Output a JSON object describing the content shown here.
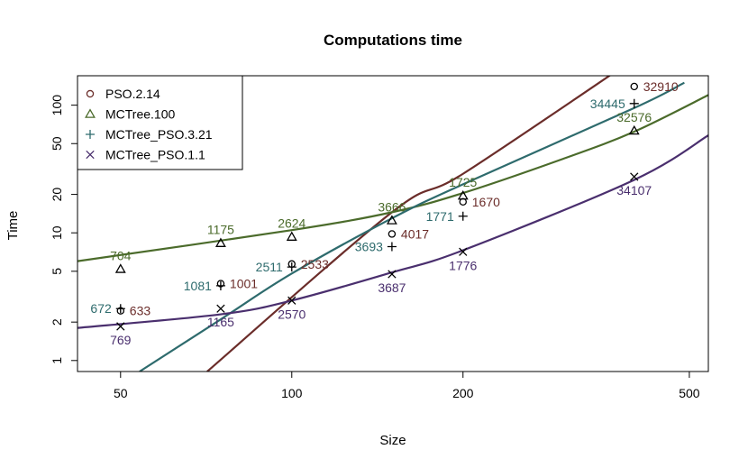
{
  "chart_data": {
    "type": "scatter",
    "title": "Computations time",
    "xlabel": "Size",
    "ylabel": "Time",
    "x_scale": "log",
    "y_scale": "log",
    "xlim": [
      42,
      540
    ],
    "ylim": [
      0.82,
      170
    ],
    "x_ticks": [
      50,
      100,
      200,
      500
    ],
    "y_ticks": [
      1,
      2,
      5,
      10,
      20,
      50,
      100
    ],
    "grid": false,
    "legend_position": "top-left",
    "series": [
      {
        "name": "PSO.2.14",
        "marker": "circle",
        "color": "#6b2d2a",
        "points": [
          {
            "x": 50,
            "y": 2.45,
            "label": "633"
          },
          {
            "x": 75,
            "y": 4.0,
            "label": "1001"
          },
          {
            "x": 100,
            "y": 5.7,
            "label": "2533"
          },
          {
            "x": 150,
            "y": 9.8,
            "label": "4017"
          },
          {
            "x": 200,
            "y": 17.5,
            "label": "1670"
          },
          {
            "x": 400,
            "y": 140,
            "label": "32910"
          }
        ],
        "fit_curve": {
          "x": [
            71,
            150,
            200,
            400
          ],
          "y": [
            0.82,
            14.5,
            29,
            230
          ]
        }
      },
      {
        "name": "MCTree.100",
        "marker": "triangle",
        "color": "#4b6b2b",
        "points": [
          {
            "x": 50,
            "y": 5.2,
            "label": "704"
          },
          {
            "x": 75,
            "y": 8.3,
            "label": "1175"
          },
          {
            "x": 100,
            "y": 9.3,
            "label": "2624"
          },
          {
            "x": 150,
            "y": 12.5,
            "label": "3666"
          },
          {
            "x": 200,
            "y": 19.5,
            "label": "1725"
          },
          {
            "x": 400,
            "y": 63,
            "label": "32576"
          }
        ],
        "fit_curve": {
          "x": [
            42,
            100,
            150,
            200,
            300,
            400,
            540
          ],
          "y": [
            6.0,
            10.5,
            14.5,
            20.5,
            38,
            62,
            120
          ]
        }
      },
      {
        "name": "MCTree_PSO.3.21",
        "marker": "plus",
        "color": "#2e6b6d",
        "points": [
          {
            "x": 50,
            "y": 2.55,
            "label": "672"
          },
          {
            "x": 75,
            "y": 3.85,
            "label": "1081"
          },
          {
            "x": 100,
            "y": 5.4,
            "label": "2511"
          },
          {
            "x": 150,
            "y": 7.8,
            "label": "3693"
          },
          {
            "x": 200,
            "y": 13.5,
            "label": "1771"
          },
          {
            "x": 400,
            "y": 103,
            "label": "34445"
          }
        ],
        "fit_curve": {
          "x": [
            54,
            75,
            100,
            150,
            200,
            400,
            490
          ],
          "y": [
            0.82,
            2.1,
            4.8,
            13,
            24,
            95,
            150
          ]
        }
      },
      {
        "name": "MCTree_PSO.1.1",
        "marker": "cross",
        "color": "#4a2f6e",
        "points": [
          {
            "x": 50,
            "y": 1.85,
            "label": "769"
          },
          {
            "x": 75,
            "y": 2.55,
            "label": "1165"
          },
          {
            "x": 100,
            "y": 2.95,
            "label": "2570"
          },
          {
            "x": 150,
            "y": 4.75,
            "label": "3687"
          },
          {
            "x": 200,
            "y": 7.1,
            "label": "1776"
          },
          {
            "x": 400,
            "y": 27.5,
            "label": "34107"
          }
        ],
        "fit_curve": {
          "x": [
            42,
            75,
            100,
            150,
            200,
            400,
            540
          ],
          "y": [
            1.8,
            2.3,
            2.95,
            4.9,
            7.3,
            26,
            58
          ]
        }
      }
    ]
  }
}
